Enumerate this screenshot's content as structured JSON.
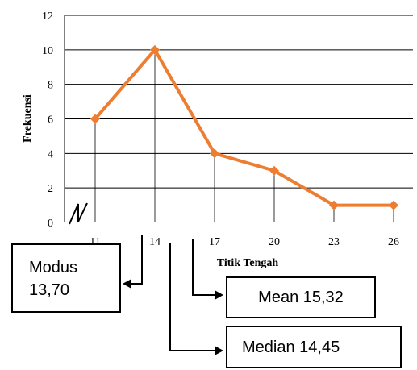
{
  "chart_data": {
    "type": "line",
    "xlabel": "Titik Tengah",
    "ylabel": "Frekuensi",
    "categories": [
      "11",
      "14",
      "17",
      "20",
      "23",
      "26"
    ],
    "values": [
      6,
      10,
      4,
      3,
      1,
      1
    ],
    "ylim": [
      0,
      12
    ],
    "yticks": [
      "0",
      "2",
      "4",
      "6",
      "8",
      "10",
      "12"
    ],
    "grid": "horizontal",
    "line_color": "#ed7d31",
    "axis_break": true
  },
  "annotations": {
    "modus_label": "Modus",
    "modus_value": "13,70",
    "mean_text": "Mean 15,32",
    "median_text": "Median 14,45"
  }
}
